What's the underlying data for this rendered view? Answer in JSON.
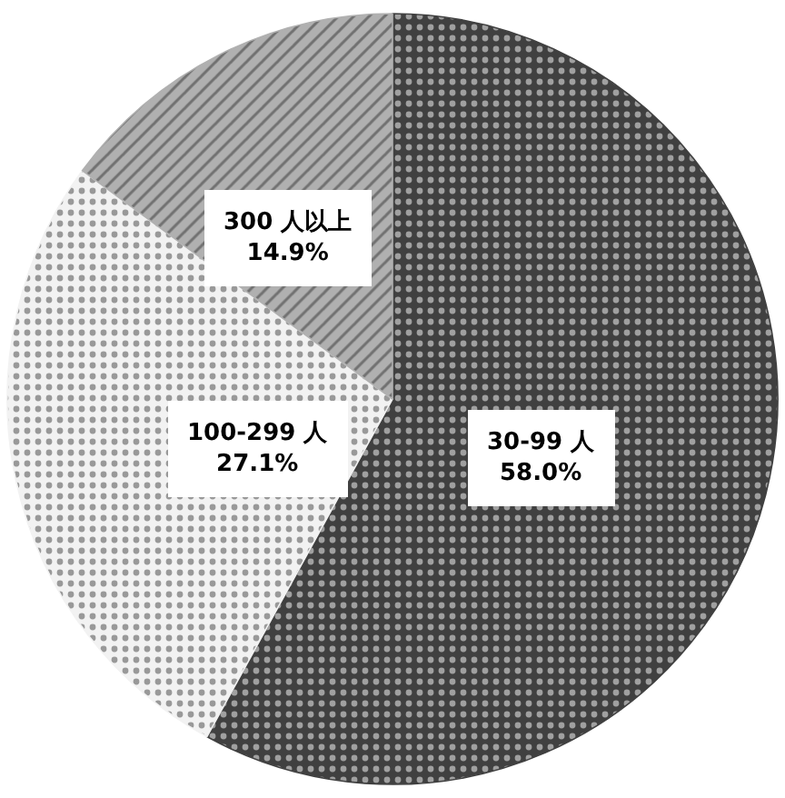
{
  "chart_data": {
    "type": "pie",
    "categories": [
      "30-99 人",
      "100-299 人",
      "300 人以上"
    ],
    "values": [
      58.0,
      27.1,
      14.9
    ],
    "colors": [
      "#404040",
      "#f2f2f2",
      "#b0b0b0"
    ],
    "value_labels": [
      "58.0%",
      "27.1%",
      "14.9%"
    ],
    "legend": false
  }
}
